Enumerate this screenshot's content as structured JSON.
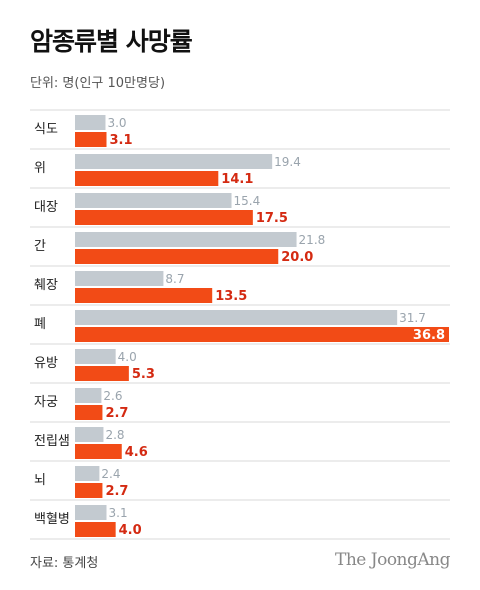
{
  "title": "암종류별 사망률",
  "unit": "단위: 명(인구 10만명당)",
  "source": "자료: 통계청",
  "brand": "The JoongAng",
  "colors": {
    "series_a": "#c3cad0",
    "series_b": "#f24b16",
    "label_b": "#d42a12",
    "label_a": "#9aa4ad",
    "separator": "#d9d9d9"
  },
  "chart_data": {
    "type": "bar",
    "orientation": "horizontal",
    "categories": [
      "식도",
      "위",
      "대장",
      "간",
      "췌장",
      "폐",
      "유방",
      "자궁",
      "전립샘",
      "뇌",
      "백혈병"
    ],
    "series": [
      {
        "values": [
          3.0,
          19.4,
          15.4,
          21.8,
          8.7,
          31.7,
          4.0,
          2.6,
          2.8,
          2.4,
          3.1
        ]
      },
      {
        "values": [
          3.1,
          14.1,
          17.5,
          20.0,
          13.5,
          36.8,
          5.3,
          2.7,
          4.6,
          2.7,
          4.0
        ]
      }
    ],
    "xlim": [
      0,
      36.8
    ],
    "grid": false,
    "legend": "none"
  }
}
